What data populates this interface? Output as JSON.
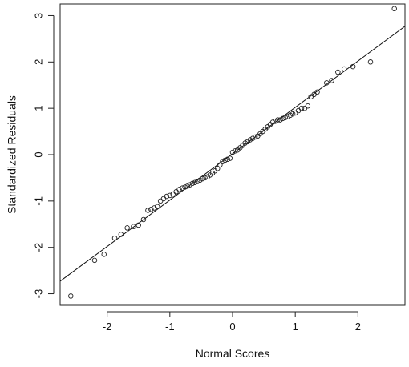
{
  "chart_data": {
    "type": "scatter",
    "title": "",
    "xlabel": "Normal Scores",
    "ylabel": "Standardized Residuals",
    "xlim": [
      -2.75,
      2.75
    ],
    "ylim": [
      -3.25,
      3.25
    ],
    "xticks": [
      -2,
      -1,
      0,
      1,
      2
    ],
    "xtick_labels": [
      "-2",
      "-1",
      "0",
      "1",
      "2"
    ],
    "yticks": [
      -3,
      -2,
      -1,
      0,
      1,
      2,
      3
    ],
    "ytick_labels": [
      "-3",
      "-2",
      "-1",
      "0",
      "1",
      "2",
      "3"
    ],
    "grid": false,
    "legend": "none",
    "marker": "open-circle",
    "reference_line": {
      "intercept": 0.02,
      "slope": 1.0
    },
    "points": [
      [
        -2.58,
        -3.05
      ],
      [
        -2.2,
        -2.28
      ],
      [
        -2.05,
        -2.15
      ],
      [
        -1.88,
        -1.8
      ],
      [
        -1.78,
        -1.72
      ],
      [
        -1.68,
        -1.58
      ],
      [
        -1.58,
        -1.55
      ],
      [
        -1.5,
        -1.52
      ],
      [
        -1.42,
        -1.4
      ],
      [
        -1.35,
        -1.2
      ],
      [
        -1.3,
        -1.18
      ],
      [
        -1.25,
        -1.15
      ],
      [
        -1.2,
        -1.12
      ],
      [
        -1.15,
        -1.0
      ],
      [
        -1.1,
        -0.95
      ],
      [
        -1.05,
        -0.9
      ],
      [
        -1.0,
        -0.88
      ],
      [
        -0.95,
        -0.85
      ],
      [
        -0.9,
        -0.8
      ],
      [
        -0.85,
        -0.75
      ],
      [
        -0.8,
        -0.72
      ],
      [
        -0.76,
        -0.7
      ],
      [
        -0.72,
        -0.68
      ],
      [
        -0.68,
        -0.65
      ],
      [
        -0.64,
        -0.62
      ],
      [
        -0.6,
        -0.6
      ],
      [
        -0.56,
        -0.58
      ],
      [
        -0.52,
        -0.55
      ],
      [
        -0.48,
        -0.52
      ],
      [
        -0.44,
        -0.5
      ],
      [
        -0.4,
        -0.48
      ],
      [
        -0.36,
        -0.44
      ],
      [
        -0.32,
        -0.4
      ],
      [
        -0.28,
        -0.35
      ],
      [
        -0.24,
        -0.3
      ],
      [
        -0.2,
        -0.22
      ],
      [
        -0.16,
        -0.15
      ],
      [
        -0.12,
        -0.12
      ],
      [
        -0.08,
        -0.1
      ],
      [
        -0.04,
        -0.08
      ],
      [
        0.0,
        0.05
      ],
      [
        0.04,
        0.08
      ],
      [
        0.08,
        0.1
      ],
      [
        0.12,
        0.15
      ],
      [
        0.16,
        0.2
      ],
      [
        0.2,
        0.25
      ],
      [
        0.24,
        0.28
      ],
      [
        0.28,
        0.32
      ],
      [
        0.32,
        0.35
      ],
      [
        0.36,
        0.38
      ],
      [
        0.4,
        0.4
      ],
      [
        0.44,
        0.45
      ],
      [
        0.48,
        0.5
      ],
      [
        0.52,
        0.55
      ],
      [
        0.56,
        0.6
      ],
      [
        0.6,
        0.65
      ],
      [
        0.64,
        0.7
      ],
      [
        0.68,
        0.72
      ],
      [
        0.72,
        0.75
      ],
      [
        0.76,
        0.75
      ],
      [
        0.8,
        0.78
      ],
      [
        0.84,
        0.8
      ],
      [
        0.88,
        0.82
      ],
      [
        0.92,
        0.85
      ],
      [
        0.96,
        0.88
      ],
      [
        1.0,
        0.9
      ],
      [
        1.05,
        0.95
      ],
      [
        1.1,
        1.0
      ],
      [
        1.15,
        1.0
      ],
      [
        1.2,
        1.05
      ],
      [
        1.25,
        1.25
      ],
      [
        1.3,
        1.3
      ],
      [
        1.35,
        1.35
      ],
      [
        1.5,
        1.55
      ],
      [
        1.58,
        1.6
      ],
      [
        1.68,
        1.78
      ],
      [
        1.78,
        1.85
      ],
      [
        1.92,
        1.9
      ],
      [
        2.2,
        2.0
      ],
      [
        2.58,
        3.15
      ]
    ]
  }
}
